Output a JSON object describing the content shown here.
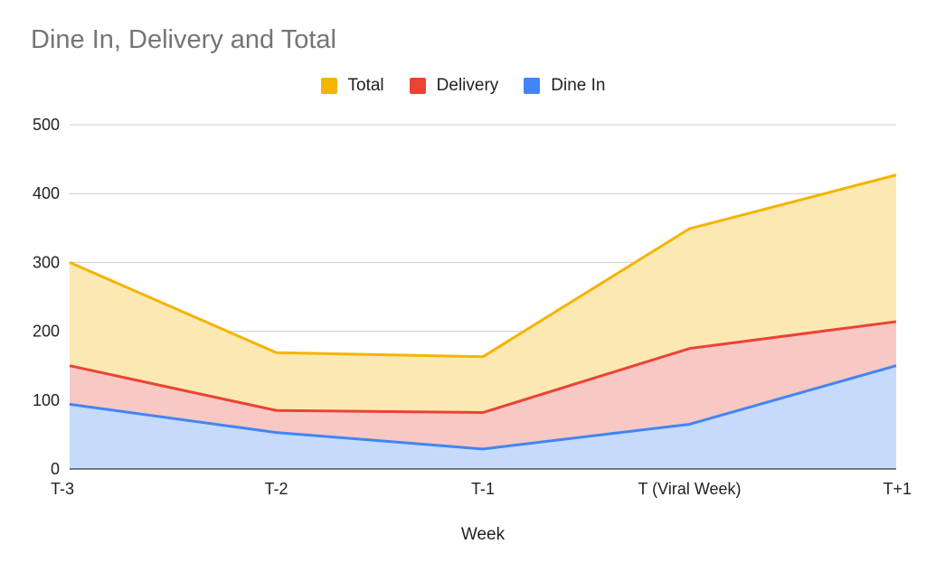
{
  "chart_data": {
    "type": "area",
    "title": "Dine In, Delivery and Total",
    "xlabel": "Week",
    "ylabel": "",
    "categories": [
      "T-3",
      "T-2",
      "T-1",
      "T (Viral Week)",
      "T+1"
    ],
    "ylim": [
      0,
      500
    ],
    "yticks": [
      0,
      100,
      200,
      300,
      400,
      500
    ],
    "grid": true,
    "legend_position": "top",
    "series": [
      {
        "name": "Total",
        "values": [
          300,
          169,
          163,
          349,
          427
        ],
        "color": "#F4B400",
        "fill": "#FCE8B2"
      },
      {
        "name": "Delivery",
        "values": [
          150,
          85,
          82,
          175,
          214
        ],
        "color": "#EA4335",
        "fill": "#F7C8C4"
      },
      {
        "name": "Dine In",
        "values": [
          94,
          53,
          29,
          65,
          150
        ],
        "color": "#4285F4",
        "fill": "#C6DAFC"
      }
    ]
  }
}
